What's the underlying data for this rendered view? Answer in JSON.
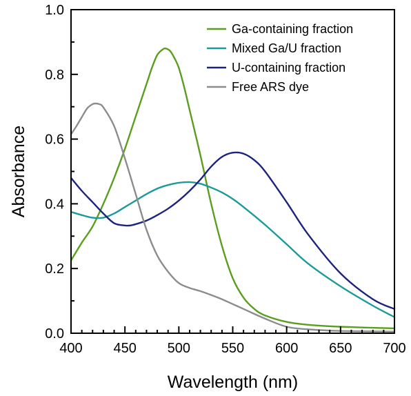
{
  "chart_data": {
    "type": "line",
    "title": "",
    "xlabel": "Wavelength (nm)",
    "ylabel": "Absorbance",
    "xlim": [
      400,
      700
    ],
    "ylim": [
      0.0,
      1.0
    ],
    "x_ticks": [
      400,
      450,
      500,
      550,
      600,
      650,
      700
    ],
    "x_tick_labels": [
      "400",
      "450",
      "500",
      "550",
      "600",
      "650",
      "700"
    ],
    "y_ticks": [
      0.0,
      0.2,
      0.4,
      0.6,
      0.8,
      1.0
    ],
    "y_tick_labels": [
      "0.0",
      "0.2",
      "0.4",
      "0.6",
      "0.8",
      "1.0"
    ],
    "grid": false,
    "legend_position": "top-right",
    "series": [
      {
        "name": "Ga-containing fraction",
        "color": "#5a9e1e",
        "x": [
          400,
          410,
          420,
          430,
          440,
          450,
          460,
          470,
          475,
          480,
          485,
          488,
          492,
          496,
          500,
          505,
          510,
          520,
          530,
          540,
          550,
          560,
          570,
          580,
          600,
          620,
          650,
          700
        ],
        "y": [
          0.225,
          0.28,
          0.33,
          0.4,
          0.48,
          0.57,
          0.67,
          0.77,
          0.82,
          0.86,
          0.877,
          0.88,
          0.872,
          0.85,
          0.82,
          0.76,
          0.69,
          0.55,
          0.4,
          0.27,
          0.17,
          0.11,
          0.075,
          0.055,
          0.035,
          0.026,
          0.02,
          0.015
        ]
      },
      {
        "name": "Mixed Ga/U fraction",
        "color": "#1a9a9a",
        "x": [
          400,
          410,
          420,
          430,
          440,
          450,
          460,
          470,
          480,
          490,
          500,
          510,
          520,
          530,
          540,
          550,
          560,
          580,
          600,
          620,
          650,
          680,
          700
        ],
        "y": [
          0.375,
          0.365,
          0.357,
          0.357,
          0.37,
          0.39,
          0.41,
          0.43,
          0.447,
          0.458,
          0.465,
          0.467,
          0.462,
          0.45,
          0.435,
          0.415,
          0.39,
          0.335,
          0.275,
          0.215,
          0.145,
          0.085,
          0.05
        ]
      },
      {
        "name": "U-containing fraction",
        "color": "#1a237e",
        "x": [
          400,
          410,
          420,
          430,
          440,
          450,
          455,
          460,
          470,
          480,
          490,
          500,
          510,
          520,
          530,
          540,
          550,
          560,
          570,
          580,
          600,
          620,
          650,
          680,
          700
        ],
        "y": [
          0.48,
          0.44,
          0.405,
          0.37,
          0.34,
          0.333,
          0.333,
          0.337,
          0.348,
          0.365,
          0.385,
          0.41,
          0.44,
          0.475,
          0.515,
          0.545,
          0.558,
          0.555,
          0.535,
          0.5,
          0.405,
          0.305,
          0.185,
          0.105,
          0.075
        ]
      },
      {
        "name": "Free ARS dye",
        "color": "#8c8c8c",
        "x": [
          400,
          405,
          410,
          415,
          420,
          423,
          426,
          430,
          440,
          450,
          460,
          470,
          480,
          490,
          500,
          510,
          520,
          530,
          540,
          550,
          560,
          580,
          600,
          620,
          650,
          700
        ],
        "y": [
          0.615,
          0.64,
          0.668,
          0.695,
          0.708,
          0.71,
          0.708,
          0.698,
          0.64,
          0.54,
          0.43,
          0.32,
          0.24,
          0.19,
          0.155,
          0.14,
          0.13,
          0.118,
          0.105,
          0.09,
          0.075,
          0.045,
          0.02,
          0.012,
          0.007,
          0.005
        ]
      }
    ]
  }
}
